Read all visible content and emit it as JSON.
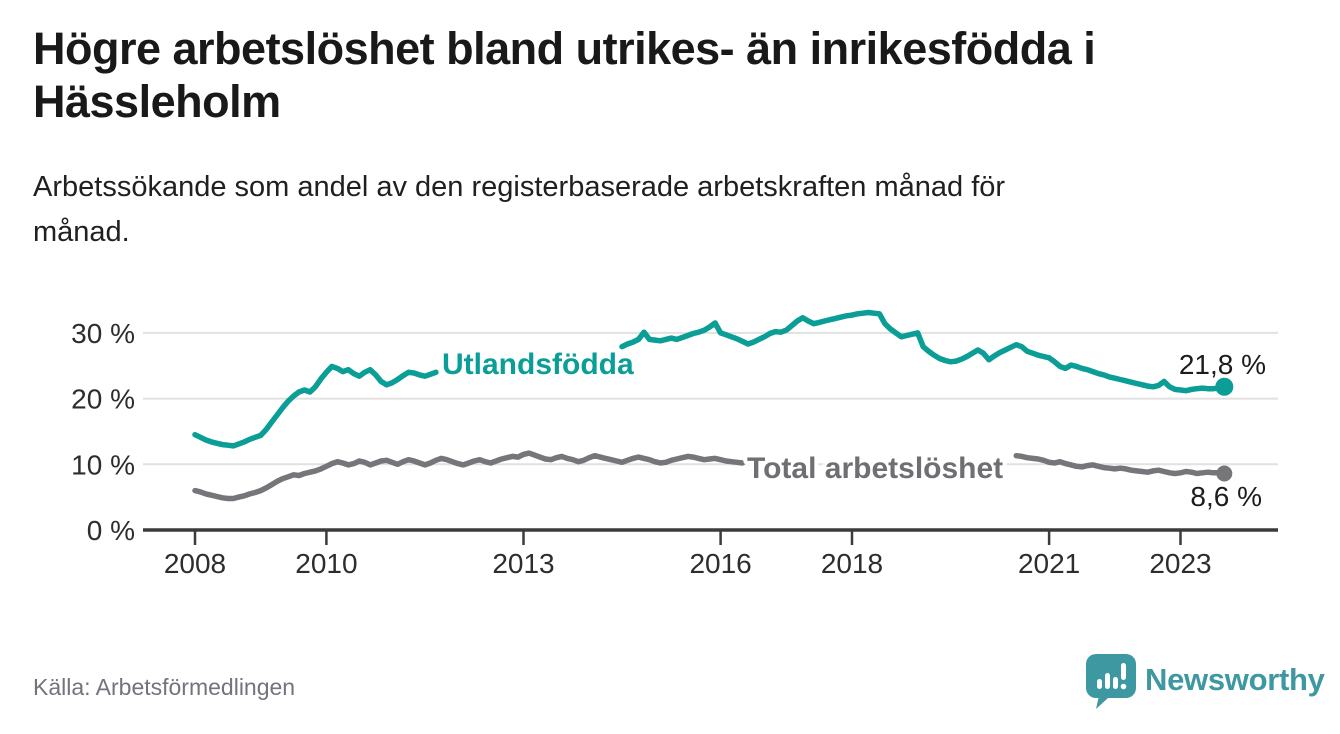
{
  "header": {
    "title_line1": "Högre arbetslöshet bland utrikes- än inrikesfödda i",
    "title_line2": "Hässleholm",
    "subtitle_line1": "Arbetssökande som andel av den registerbaserade arbetskraften månad för",
    "subtitle_line2": "månad."
  },
  "footer": {
    "source": "Källa: Arbetsförmedlingen",
    "brand_name": "Newsworthy",
    "brand_icon": "newsworthy-speech-bubble-bar-chart-icon",
    "brand_color": "#3e98a1"
  },
  "colors": {
    "accent_teal": "#0a9e96",
    "line_gray": "#76767a",
    "grid": "#e1e1e1",
    "axis": "#3b3b3b",
    "tick_text": "#2d2d2d",
    "value_text": "#1c1c1c"
  },
  "chart_data": {
    "type": "line",
    "title": "Högre arbetslöshet bland utrikes- än inrikesfödda i Hässleholm",
    "subtitle": "Arbetssökande som andel av den registerbaserade arbetskraften månad för månad.",
    "x_start": "2008-01",
    "x_end": "2023-09",
    "frequency": "monthly",
    "x_ticks": [
      2008,
      2010,
      2013,
      2016,
      2018,
      2021,
      2023
    ],
    "y_ticks": [
      0,
      10,
      20,
      30
    ],
    "y_tick_labels": [
      "0 %",
      "10 %",
      "20 %",
      "30 %"
    ],
    "ylim": [
      0,
      35
    ],
    "grid": "horizontal",
    "unit": "%",
    "note_on_nulls": "null months are hidden in the original behind the inline series label",
    "series": [
      {
        "name": "Utlandsfödda",
        "color": "#0a9e96",
        "label_color": "#0a9e96",
        "end_label": "21,8 %",
        "end_value": 21.8,
        "values": [
          14.5,
          14.1,
          13.7,
          13.4,
          13.2,
          13.0,
          12.9,
          12.8,
          13.1,
          13.4,
          13.8,
          14.1,
          14.4,
          15.3,
          16.4,
          17.5,
          18.6,
          19.6,
          20.4,
          21.0,
          21.3,
          21.0,
          21.8,
          23.0,
          24.0,
          24.9,
          24.6,
          24.1,
          24.4,
          23.8,
          23.4,
          24.0,
          24.4,
          23.6,
          22.6,
          22.1,
          22.4,
          22.9,
          23.5,
          24.0,
          23.9,
          23.6,
          23.4,
          23.7,
          24.0,
          null,
          null,
          null,
          null,
          null,
          null,
          null,
          null,
          null,
          null,
          null,
          null,
          null,
          null,
          null,
          null,
          null,
          null,
          null,
          null,
          null,
          null,
          null,
          null,
          null,
          null,
          null,
          null,
          null,
          null,
          null,
          null,
          null,
          27.9,
          28.3,
          28.6,
          29.0,
          30.1,
          29.0,
          28.9,
          28.8,
          29.0,
          29.2,
          29.0,
          29.3,
          29.6,
          29.9,
          30.1,
          30.4,
          30.9,
          31.5,
          30.0,
          29.7,
          29.4,
          29.1,
          28.7,
          28.3,
          28.6,
          29.0,
          29.4,
          29.9,
          30.2,
          30.1,
          30.4,
          31.1,
          31.8,
          32.3,
          31.8,
          31.4,
          31.6,
          31.8,
          32.0,
          32.2,
          32.4,
          32.6,
          32.7,
          32.9,
          33.0,
          33.1,
          33.0,
          32.9,
          31.4,
          30.6,
          30.0,
          29.4,
          29.6,
          29.8,
          30.0,
          27.9,
          27.2,
          26.6,
          26.1,
          25.8,
          25.6,
          25.7,
          26.0,
          26.4,
          26.9,
          27.4,
          26.9,
          25.9,
          26.5,
          27.0,
          27.4,
          27.8,
          28.2,
          27.9,
          27.2,
          26.9,
          26.6,
          26.4,
          26.2,
          25.6,
          24.9,
          24.6,
          25.1,
          24.9,
          24.6,
          24.4,
          24.1,
          23.8,
          23.6,
          23.3,
          23.1,
          22.9,
          22.7,
          22.5,
          22.3,
          22.1,
          21.9,
          21.8,
          22.0,
          22.6,
          21.8,
          21.4,
          21.3,
          21.2,
          21.4,
          21.5,
          21.6,
          21.5,
          21.5,
          21.6,
          21.8
        ]
      },
      {
        "name": "Total arbetslöshet",
        "color": "#76767a",
        "label_color": "#6e6e73",
        "end_label": "8,6 %",
        "end_value": 8.6,
        "values": [
          6.0,
          5.8,
          5.5,
          5.3,
          5.1,
          4.9,
          4.8,
          4.8,
          5.0,
          5.2,
          5.5,
          5.7,
          6.0,
          6.4,
          6.9,
          7.4,
          7.8,
          8.1,
          8.4,
          8.3,
          8.6,
          8.8,
          9.0,
          9.3,
          9.7,
          10.1,
          10.4,
          10.2,
          9.9,
          10.1,
          10.5,
          10.3,
          9.9,
          10.2,
          10.5,
          10.6,
          10.3,
          10.0,
          10.4,
          10.7,
          10.5,
          10.2,
          9.9,
          10.2,
          10.6,
          10.9,
          10.7,
          10.4,
          10.1,
          9.9,
          10.2,
          10.5,
          10.7,
          10.4,
          10.2,
          10.5,
          10.8,
          11.0,
          11.2,
          11.1,
          11.5,
          11.7,
          11.4,
          11.1,
          10.8,
          10.7,
          11.0,
          11.2,
          10.9,
          10.7,
          10.4,
          10.6,
          11.0,
          11.3,
          11.1,
          10.9,
          10.7,
          10.5,
          10.3,
          10.6,
          10.9,
          11.1,
          10.9,
          10.7,
          10.4,
          10.2,
          10.3,
          10.6,
          10.8,
          11.0,
          11.2,
          11.1,
          10.9,
          10.7,
          10.8,
          10.9,
          10.7,
          10.5,
          10.4,
          10.3,
          10.2,
          null,
          null,
          null,
          null,
          null,
          null,
          null,
          null,
          null,
          null,
          null,
          null,
          null,
          null,
          null,
          null,
          null,
          null,
          null,
          null,
          null,
          null,
          null,
          null,
          null,
          null,
          null,
          null,
          null,
          null,
          null,
          null,
          null,
          null,
          null,
          null,
          null,
          null,
          null,
          null,
          null,
          null,
          null,
          null,
          null,
          null,
          null,
          null,
          null,
          11.3,
          11.2,
          11.0,
          10.9,
          10.8,
          10.6,
          10.3,
          10.2,
          10.4,
          10.1,
          9.9,
          9.7,
          9.6,
          9.8,
          9.9,
          9.7,
          9.5,
          9.4,
          9.3,
          9.4,
          9.3,
          9.1,
          9.0,
          8.9,
          8.8,
          9.0,
          9.1,
          8.9,
          8.7,
          8.6,
          8.7,
          8.9,
          8.8,
          8.6,
          8.7,
          8.8,
          8.7,
          8.7,
          8.6
        ]
      }
    ]
  }
}
